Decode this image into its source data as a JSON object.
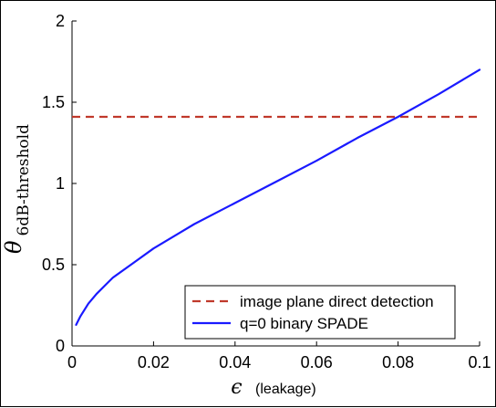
{
  "chart_data": {
    "type": "line",
    "xlim": [
      0,
      0.1
    ],
    "ylim": [
      0,
      2
    ],
    "xticks": [
      "0",
      "0.02",
      "0.04",
      "0.06",
      "0.08",
      "0.1"
    ],
    "xtick_values": [
      0,
      0.02,
      0.04,
      0.06,
      0.08,
      0.1
    ],
    "yticks": [
      "0",
      "0.5",
      "1",
      "1.5",
      "2"
    ],
    "ytick_values": [
      0,
      0.5,
      1,
      1.5,
      2
    ],
    "xlabel_symbol": "ϵ",
    "xlabel_text": "(leakage)",
    "ylabel_symbol": "θ",
    "ylabel_subscript": "6dB-threshold",
    "grid": false,
    "legend_position": "bottom-right",
    "series": [
      {
        "name": "image plane direct detection",
        "style": "dashed",
        "color": "#c0392b",
        "x": [
          0,
          0.1
        ],
        "y": [
          1.41,
          1.41
        ]
      },
      {
        "name": "q=0 binary SPADE",
        "style": "solid",
        "color": "#1a1aff",
        "x": [
          0.001,
          0.002,
          0.004,
          0.006,
          0.008,
          0.01,
          0.015,
          0.02,
          0.03,
          0.04,
          0.05,
          0.06,
          0.07,
          0.08,
          0.09,
          0.1
        ],
        "y": [
          0.13,
          0.18,
          0.26,
          0.32,
          0.37,
          0.42,
          0.51,
          0.6,
          0.75,
          0.88,
          1.01,
          1.14,
          1.28,
          1.41,
          1.55,
          1.7
        ]
      }
    ]
  }
}
